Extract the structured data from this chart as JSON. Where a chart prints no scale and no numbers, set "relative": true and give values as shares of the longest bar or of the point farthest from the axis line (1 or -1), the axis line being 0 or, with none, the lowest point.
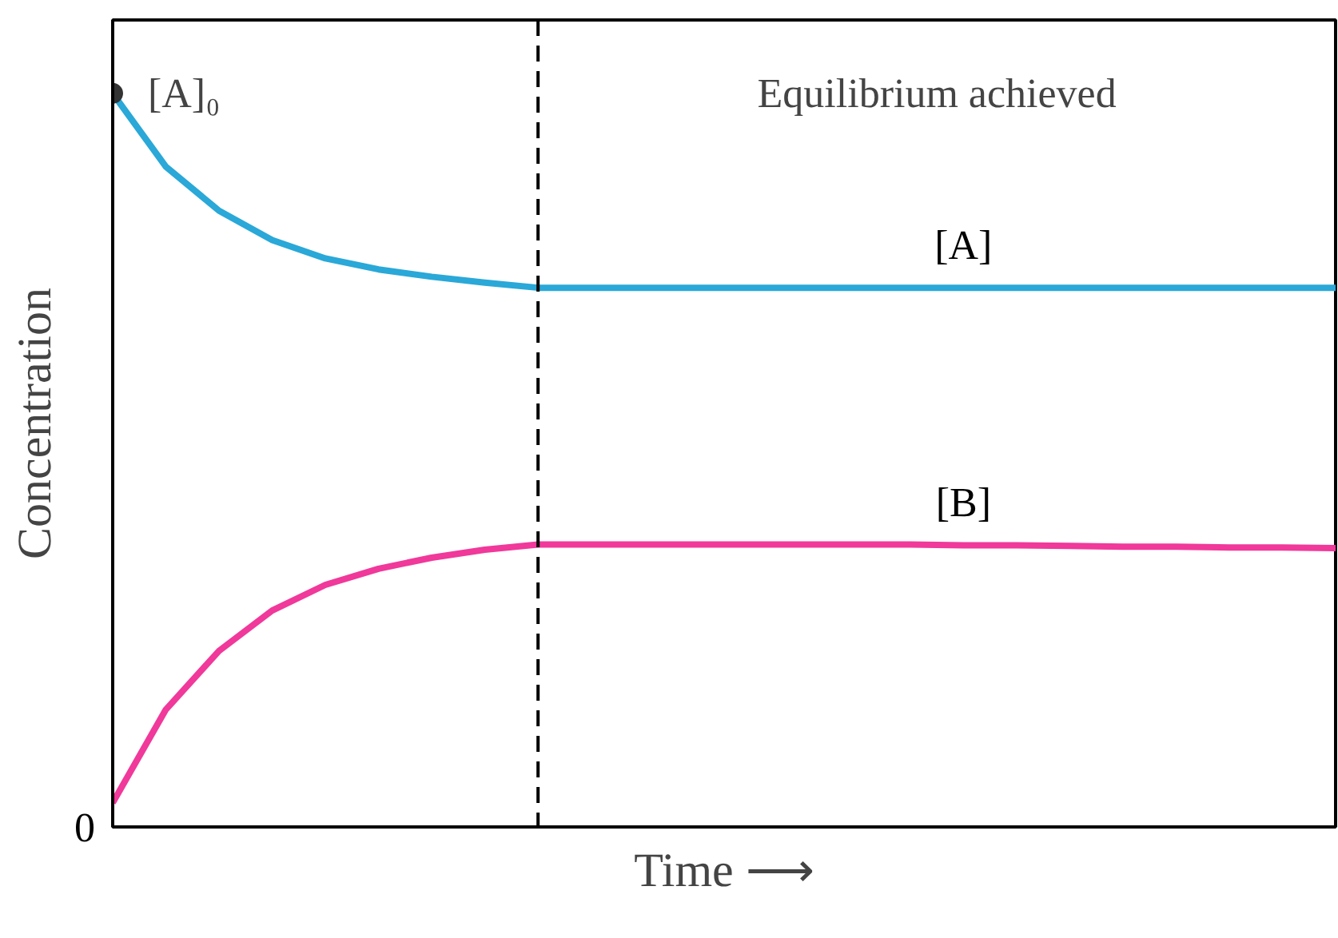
{
  "chart_data": {
    "type": "line",
    "relative": true,
    "xlabel": "Time ⟶",
    "ylabel": "Concentration",
    "categories": [
      null,
      null,
      null,
      null,
      null,
      null,
      null,
      null,
      null,
      null,
      null,
      null,
      null,
      null,
      null,
      null,
      null,
      null,
      null,
      null,
      null,
      null,
      null,
      null
    ],
    "series": [
      {
        "name": "[A]",
        "color": "#2aa8d8",
        "values": [
          1,
          0.9,
          0.84,
          0.8,
          0.775,
          0.76,
          0.75,
          0.742,
          0.735,
          0.735,
          0.735,
          0.735,
          0.735,
          0.735,
          0.735,
          0.735,
          0.735,
          0.735,
          0.735,
          0.735,
          0.735,
          0.735,
          0.735,
          0.735
        ]
      },
      {
        "name": "[B]",
        "color": "#f0399a",
        "values": [
          0.033,
          0.16,
          0.24,
          0.295,
          0.33,
          0.352,
          0.367,
          0.378,
          0.385,
          0.385,
          0.385,
          0.385,
          0.385,
          0.385,
          0.385,
          0.385,
          0.384,
          0.384,
          0.383,
          0.382,
          0.382,
          0.381,
          0.381,
          0.38
        ]
      }
    ],
    "annotations": [
      "[A]₀",
      "Equilibrium achieved",
      "0"
    ],
    "grid": false,
    "legend": false,
    "line_style": "solid",
    "marker": "none"
  }
}
